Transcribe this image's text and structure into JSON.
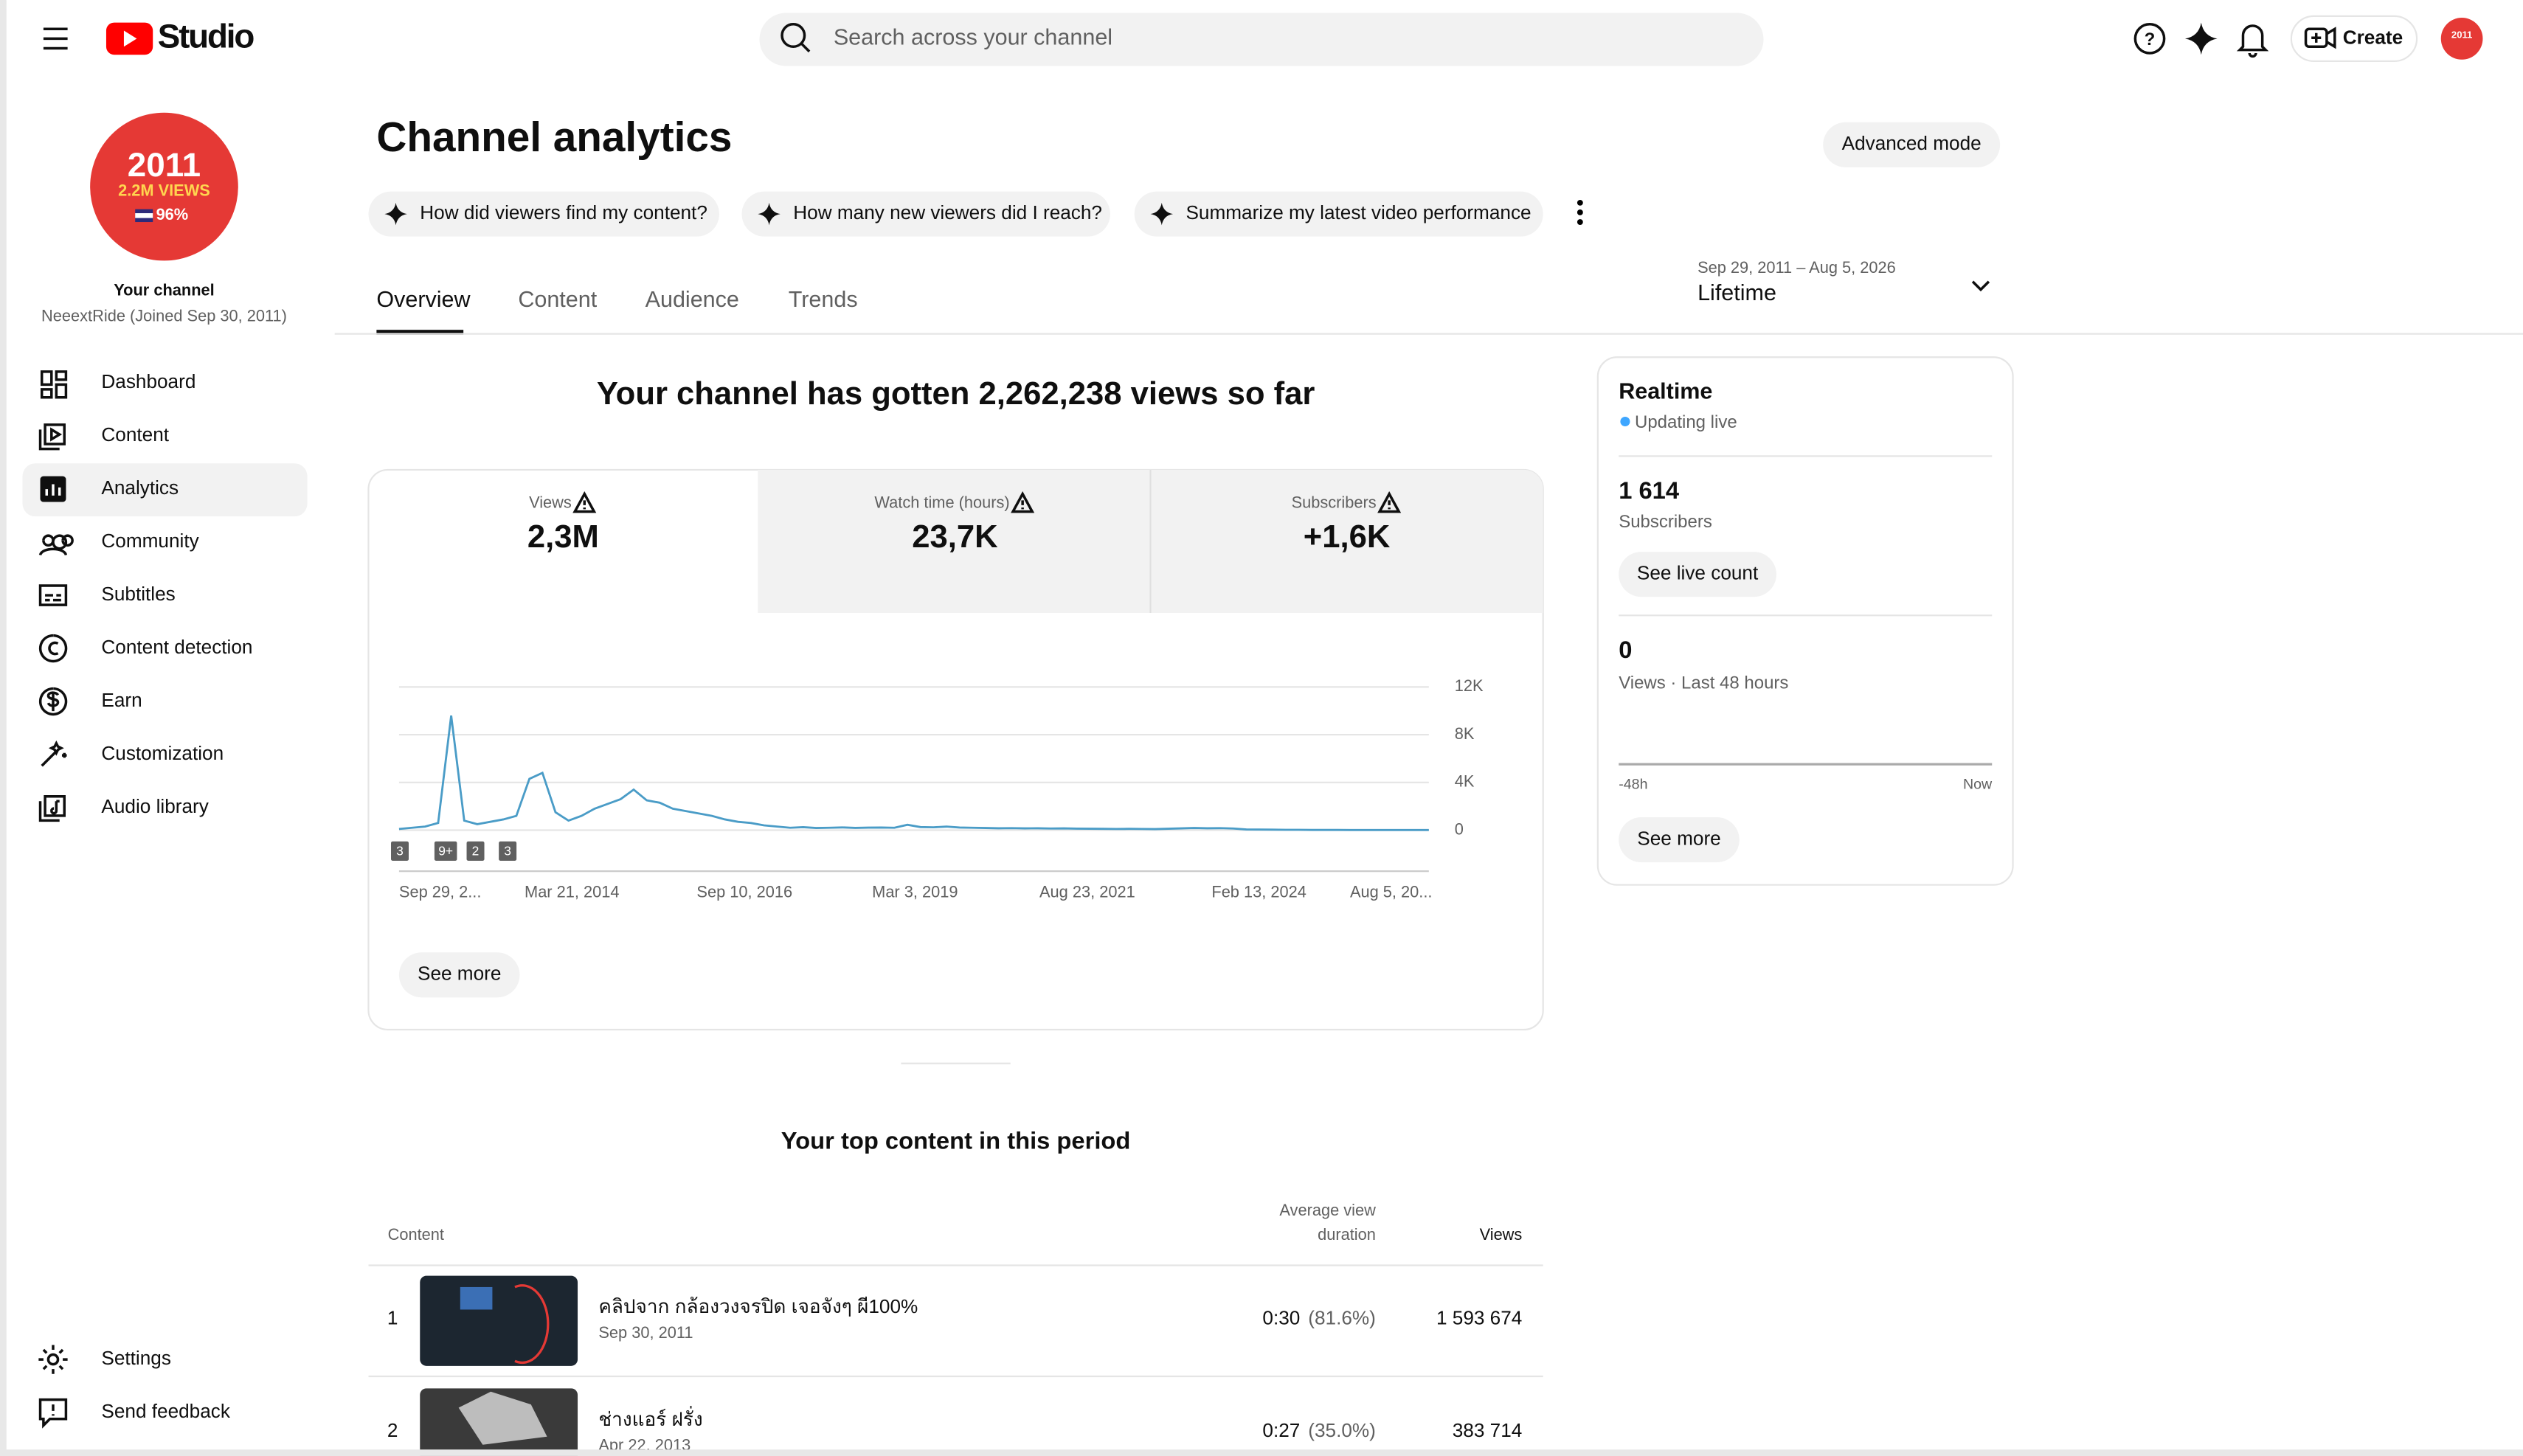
{
  "header": {
    "logo": "Studio",
    "search_placeholder": "Search across your channel",
    "create": "Create"
  },
  "sidebar": {
    "avatar": {
      "year": "2011",
      "views": "2.2M VIEWS",
      "percent": "96%"
    },
    "channel_label": "Your channel",
    "channel_name": "NeeextRide (Joined Sep 30, 2011)",
    "nav": [
      "Dashboard",
      "Content",
      "Analytics",
      "Community",
      "Subtitles",
      "Content detection",
      "Earn",
      "Customization",
      "Audio library"
    ],
    "footer_nav": [
      "Settings",
      "Send feedback"
    ]
  },
  "page": {
    "title": "Channel analytics",
    "advanced_mode": "Advanced mode",
    "prompts": [
      "How did viewers find my content?",
      "How many new viewers did I reach?",
      "Summarize my latest video performance"
    ],
    "tabs": [
      "Overview",
      "Content",
      "Audience",
      "Trends"
    ],
    "date_range": "Sep 29, 2011 – Aug 5, 2026",
    "period": "Lifetime"
  },
  "summary": {
    "headline": "Your channel has gotten 2,262,238 views so far",
    "metrics": [
      {
        "label": "Views",
        "value": "2,3M"
      },
      {
        "label": "Watch time (hours)",
        "value": "23,7K"
      },
      {
        "label": "Subscribers",
        "value": "+1,6K"
      }
    ],
    "badges": [
      "3",
      "9+",
      "2",
      "3"
    ],
    "see_more": "See more"
  },
  "chart_data": {
    "type": "line",
    "ylim": [
      0,
      12000
    ],
    "yticks": [
      0,
      {
        "value": 4000,
        "label": "4K"
      },
      {
        "value": 8000,
        "label": "8K"
      },
      {
        "value": 12000,
        "label": "12K"
      }
    ],
    "xtick_labels": [
      "Sep 29, 2...",
      "Mar 21, 2014",
      "Sep 10, 2016",
      "Mar 3, 2019",
      "Aug 23, 2021",
      "Feb 13, 2024",
      "Aug 5, 20..."
    ],
    "series": [
      {
        "name": "Views",
        "color": "#4a9cc7",
        "values": [
          100,
          200,
          300,
          600,
          9600,
          800,
          500,
          700,
          900,
          1200,
          4300,
          4800,
          1500,
          800,
          1200,
          1800,
          2200,
          2600,
          3400,
          2500,
          2300,
          1800,
          1600,
          1400,
          1200,
          900,
          700,
          600,
          400,
          300,
          200,
          250,
          180,
          200,
          230,
          190,
          210,
          220,
          200,
          450,
          260,
          240,
          300,
          220,
          200,
          180,
          160,
          170,
          150,
          160,
          140,
          150,
          130,
          120,
          110,
          100,
          110,
          100,
          90,
          120,
          150,
          180,
          160,
          170,
          140,
          60,
          50,
          40,
          30,
          30,
          20,
          20,
          20,
          10,
          10,
          10,
          10,
          10,
          10,
          10
        ]
      }
    ]
  },
  "realtime": {
    "title": "Realtime",
    "status": "Updating live",
    "subscribers": "1 614",
    "subscribers_label": "Subscribers",
    "see_live_count": "See live count",
    "views": "0",
    "views_label": "Views · Last 48 hours",
    "axis_start": "-48h",
    "axis_end": "Now",
    "see_more": "See more"
  },
  "top_content": {
    "title": "Your top content in this period",
    "headers": {
      "content": "Content",
      "avg_line1": "Average view",
      "avg_line2": "duration",
      "views": "Views"
    },
    "rows": [
      {
        "rank": "1",
        "title": "คลิปจาก กล้องวงจรปิด เจอจังๆ ผี100%",
        "date": "Sep 30, 2011",
        "duration": "0:30",
        "percent": "(81.6%)",
        "views": "1 593 674"
      },
      {
        "rank": "2",
        "title": "ช่างแอร์ ฝรั่ง",
        "date": "Apr 22, 2013",
        "duration": "0:27",
        "percent": "(35.0%)",
        "views": "383 714"
      }
    ]
  }
}
